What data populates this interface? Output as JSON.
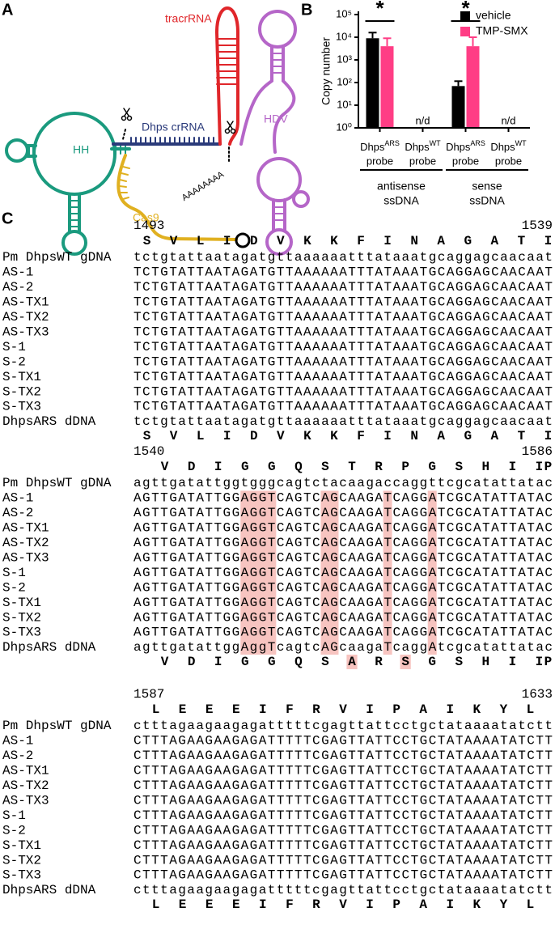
{
  "panel_a": {
    "label": "A",
    "tracr": "tracrRNA",
    "hh": "HH",
    "crrna": "Dhps crRNA",
    "hdv": "HDV",
    "polya": "AAAAAAAA",
    "cas9": "Cas9"
  },
  "chart_data": {
    "type": "bar",
    "panel_label": "B",
    "y_label": "Copy number",
    "log_scale": true,
    "ylim": [
      1,
      100000
    ],
    "yticks": [
      {
        "value": 1,
        "label": "10⁰"
      },
      {
        "value": 10,
        "label": "10¹"
      },
      {
        "value": 100,
        "label": "10²"
      },
      {
        "value": 1000,
        "label": "10³"
      },
      {
        "value": 10000,
        "label": "10⁴"
      },
      {
        "value": 100000,
        "label": "10⁵"
      }
    ],
    "categories": [
      {
        "name": "Dhps",
        "sup": "ARS",
        "line2": "probe"
      },
      {
        "name": "Dhps",
        "sup": "WT",
        "line2": "probe"
      },
      {
        "name": "Dhps",
        "sup": "ARS",
        "line2": "probe"
      },
      {
        "name": "Dhps",
        "sup": "WT",
        "line2": "probe"
      }
    ],
    "groups": [
      {
        "lines": [
          "antisense",
          "ssDNA"
        ]
      },
      {
        "lines": [
          "sense",
          "ssDNA"
        ]
      }
    ],
    "series": [
      {
        "name": "vehicle",
        "color": "#000000",
        "values": [
          9000,
          null,
          70,
          null
        ],
        "errors": [
          7000,
          null,
          45,
          null
        ]
      },
      {
        "name": "TMP-SMX",
        "color": "#ff3d85",
        "values": [
          4000,
          null,
          4000,
          null
        ],
        "errors": [
          5000,
          null,
          6000,
          null
        ]
      }
    ],
    "significance_label": "*",
    "missing_label": "n/d",
    "legend": "top-right"
  },
  "panel_c": {
    "label": "C",
    "row_names": [
      "Pm DhpsWT gDNA",
      "AS-1",
      "AS-2",
      "AS-TX1",
      "AS-TX2",
      "AS-TX3",
      "S-1",
      "S-2",
      "S-TX1",
      "S-TX2",
      "S-TX3",
      "DhpsARS dDNA"
    ],
    "blocks": [
      {
        "start": 1493,
        "end": 1539,
        "translation_top": [
          "S",
          "V",
          "L",
          "I",
          "D",
          "V",
          "K",
          "K",
          "F",
          "I",
          "N",
          "A",
          "G",
          "A",
          "T",
          "I"
        ],
        "translation_bottom": [
          "S",
          "V",
          "L",
          "I",
          "D",
          "V",
          "K",
          "K",
          "F",
          "I",
          "N",
          "A",
          "G",
          "A",
          "T",
          "I"
        ],
        "sequences": [
          "tctgtattaatagatgttaaaaaatttataaatgcaggagcaacaat",
          "TCTGTATTAATAGATGTTAAAAAATTTATAAATGCAGGAGCAACAAT",
          "TCTGTATTAATAGATGTTAAAAAATTTATAAATGCAGGAGCAACAAT",
          "TCTGTATTAATAGATGTTAAAAAATTTATAAATGCAGGAGCAACAAT",
          "TCTGTATTAATAGATGTTAAAAAATTTATAAATGCAGGAGCAACAAT",
          "TCTGTATTAATAGATGTTAAAAAATTTATAAATGCAGGAGCAACAAT",
          "TCTGTATTAATAGATGTTAAAAAATTTATAAATGCAGGAGCAACAAT",
          "TCTGTATTAATAGATGTTAAAAAATTTATAAATGCAGGAGCAACAAT",
          "TCTGTATTAATAGATGTTAAAAAATTTATAAATGCAGGAGCAACAAT",
          "TCTGTATTAATAGATGTTAAAAAATTTATAAATGCAGGAGCAACAAT",
          "TCTGTATTAATAGATGTTAAAAAATTTATAAATGCAGGAGCAACAAT",
          "tctgtattaatagatgttaaaaaatttataaatgcaggagcaacaat"
        ]
      },
      {
        "start": 1540,
        "end": 1586,
        "translation_top": [
          "V",
          "D",
          "I",
          "G",
          "G",
          "Q",
          "S",
          "T",
          "R",
          "P",
          "G",
          "S",
          "H",
          "I",
          "I",
          "P"
        ],
        "translation_bottom": [
          "V",
          "D",
          "I",
          "G",
          "G",
          "Q",
          "S",
          "A",
          "R",
          "S",
          "G",
          "S",
          "H",
          "I",
          "I",
          "P"
        ],
        "sequences": [
          "agttgatattggtgggcagtctacaagaccaggttcgcatattatac",
          "AGTTGATATTGGAGGTCAGTCAGCAAGATCAGGATCGCATATTATAC",
          "AGTTGATATTGGAGGTCAGTCAGCAAGATCAGGATCGCATATTATAC",
          "AGTTGATATTGGAGGTCAGTCAGCAAGATCAGGATCGCATATTATAC",
          "AGTTGATATTGGAGGTCAGTCAGCAAGATCAGGATCGCATATTATAC",
          "AGTTGATATTGGAGGTCAGTCAGCAAGATCAGGATCGCATATTATAC",
          "AGTTGATATTGGAGGTCAGTCAGCAAGATCAGGATCGCATATTATAC",
          "AGTTGATATTGGAGGTCAGTCAGCAAGATCAGGATCGCATATTATAC",
          "AGTTGATATTGGAGGTCAGTCAGCAAGATCAGGATCGCATATTATAC",
          "AGTTGATATTGGAGGTCAGTCAGCAAGATCAGGATCGCATATTATAC",
          "AGTTGATATTGGAGGTCAGTCAGCAAGATCAGGATCGCATATTATAC",
          "agttgatattggAggTcagtcAGcaagaTcaggAtcgcatattatac"
        ]
      },
      {
        "start": 1587,
        "end": 1633,
        "translation_top": [
          "L",
          "E",
          "E",
          "E",
          "I",
          "F",
          "R",
          "V",
          "I",
          "P",
          "A",
          "I",
          "K",
          "Y",
          "L"
        ],
        "translation_bottom": [
          "L",
          "E",
          "E",
          "E",
          "I",
          "F",
          "R",
          "V",
          "I",
          "P",
          "A",
          "I",
          "K",
          "Y",
          "L"
        ],
        "sequences": [
          "ctttagaagaagagatttttcgagttattcctgctataaaatatctt",
          "CTTTAGAAGAAGAGATTTTTCGAGTTATTCCTGCTATAAAATATCTT",
          "CTTTAGAAGAAGAGATTTTTCGAGTTATTCCTGCTATAAAATATCTT",
          "CTTTAGAAGAAGAGATTTTTCGAGTTATTCCTGCTATAAAATATCTT",
          "CTTTAGAAGAAGAGATTTTTCGAGTTATTCCTGCTATAAAATATCTT",
          "CTTTAGAAGAAGAGATTTTTCGAGTTATTCCTGCTATAAAATATCTT",
          "CTTTAGAAGAAGAGATTTTTCGAGTTATTCCTGCTATAAAATATCTT",
          "CTTTAGAAGAAGAGATTTTTCGAGTTATTCCTGCTATAAAATATCTT",
          "CTTTAGAAGAAGAGATTTTTCGAGTTATTCCTGCTATAAAATATCTT",
          "CTTTAGAAGAAGAGATTTTTCGAGTTATTCCTGCTATAAAATATCTT",
          "CTTTAGAAGAAGAGATTTTTCGAGTTATTCCTGCTATAAAATATCTT",
          "ctttagaagaagagatttttcgagttattcctgctataaaatatctt"
        ]
      }
    ]
  }
}
